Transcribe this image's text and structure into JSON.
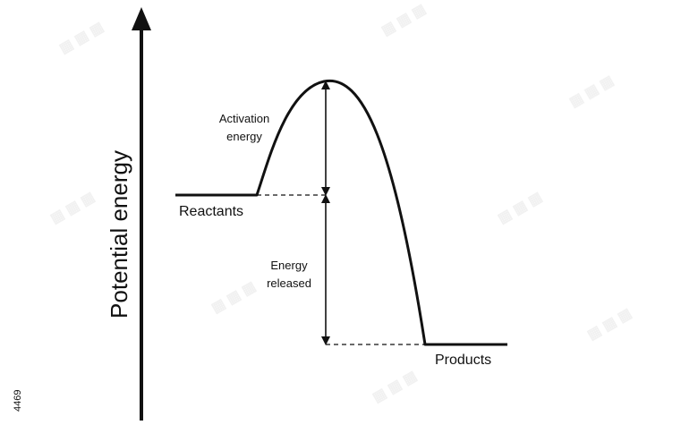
{
  "diagram": {
    "y_axis_label": "Potential energy",
    "reactants_label": "Reactants",
    "products_label": "Products",
    "activation_label_line1": "Activation",
    "activation_label_line2": "energy",
    "released_label_line1": "Energy",
    "released_label_line2": "released",
    "corner_id": "4469"
  },
  "colors": {
    "line": "#111111",
    "background": "#ffffff",
    "watermark": "#e6e6e6"
  }
}
